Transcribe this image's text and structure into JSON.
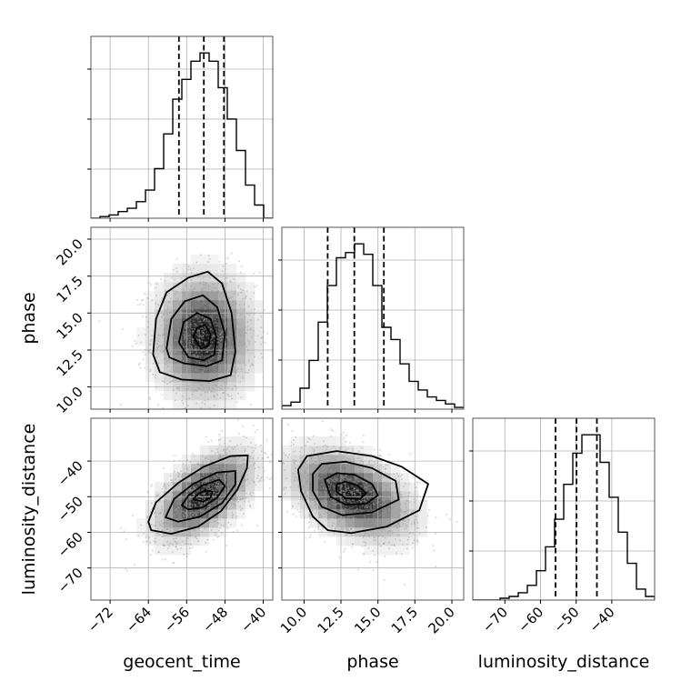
{
  "chart_data": {
    "type": "corner",
    "title": "",
    "parameters": [
      "geocent_time",
      "phase",
      "luminosity_distance"
    ],
    "axis_labels": {
      "x": [
        "geocent_time",
        "phase",
        "luminosity_distance"
      ],
      "y": [
        "phase",
        "luminosity_distance"
      ]
    },
    "grid": true,
    "ranges": {
      "geocent_time": [
        -76,
        -38
      ],
      "phase": [
        8.5,
        20.8
      ],
      "luminosity_distance": [
        -79,
        -28
      ]
    },
    "ticks": {
      "geocent_time": [
        -72,
        -64,
        -56,
        -48,
        -40
      ],
      "phase": [
        10.0,
        12.5,
        15.0,
        17.5,
        20.0
      ],
      "luminosity_distance": [
        -70,
        -60,
        -50,
        -40
      ]
    },
    "tick_labels": {
      "geocent_time": [
        "−72",
        "−64",
        "−56",
        "−48",
        "−40"
      ],
      "phase": [
        "10.0",
        "12.5",
        "15.0",
        "17.5",
        "20.0"
      ],
      "luminosity_distance": [
        "−70",
        "−60",
        "−50",
        "−40"
      ]
    },
    "marginals": {
      "geocent_time": {
        "quantiles": [
          -57.6,
          -52.4,
          -48.2
        ],
        "bins": [
          -76,
          -74.1,
          -72.2,
          -70.3,
          -68.4,
          -66.5,
          -64.6,
          -62.7,
          -60.8,
          -58.9,
          -57,
          -55.1,
          -53.2,
          -51.3,
          -49.4,
          -47.5,
          -45.6,
          -43.7,
          -41.8,
          -39.9,
          -38
        ],
        "counts": [
          0,
          1,
          2,
          4,
          6,
          10,
          17,
          30,
          51,
          72,
          84,
          95,
          100,
          95,
          79,
          60,
          41,
          20,
          8,
          0
        ]
      },
      "phase": {
        "quantiles": [
          11.6,
          13.4,
          15.4
        ],
        "bins": [
          8.5,
          9.115,
          9.73,
          10.345,
          10.96,
          11.575,
          12.19,
          12.805,
          13.42,
          14.035,
          14.65,
          15.265,
          15.88,
          16.495,
          17.11,
          17.725,
          18.34,
          18.955,
          19.57,
          20.185,
          20.8
        ],
        "counts": [
          2,
          4,
          12,
          28,
          50,
          71,
          87,
          90,
          95,
          89,
          71,
          47,
          40,
          26,
          16,
          11,
          7,
          5,
          3,
          1
        ]
      },
      "luminosity_distance": {
        "quantiles": [
          -55.8,
          -49.9,
          -44.2
        ],
        "bins": [
          -79,
          -76.45,
          -73.9,
          -71.35,
          -68.8,
          -66.25,
          -63.7,
          -61.15,
          -58.6,
          -56.05,
          -53.5,
          -50.95,
          -48.4,
          -45.85,
          -43.3,
          -40.75,
          -38.2,
          -35.65,
          -33.1,
          -30.55,
          -28
        ],
        "counts": [
          0,
          0,
          0,
          1,
          2,
          4,
          8,
          16,
          29,
          44,
          63,
          80,
          90,
          90,
          75,
          56,
          37,
          20,
          6,
          2
        ]
      }
    },
    "joint": [
      {
        "x": "geocent_time",
        "y": "phase",
        "center": [
          -52.4,
          13.4
        ],
        "contour_levels": [
          [
            [
              -63.0,
              12.2
            ],
            [
              -62.4,
              14.6
            ],
            [
              -60.2,
              16.4
            ],
            [
              -55.6,
              17.4
            ],
            [
              -51.6,
              17.8
            ],
            [
              -48.6,
              17.0
            ],
            [
              -46.6,
              15.0
            ],
            [
              -45.8,
              12.4
            ],
            [
              -46.8,
              10.8
            ],
            [
              -51.2,
              10.4
            ],
            [
              -57.0,
              10.5
            ],
            [
              -61.6,
              11.0
            ]
          ],
          [
            [
              -60.2,
              12.6
            ],
            [
              -59.2,
              14.6
            ],
            [
              -56.4,
              15.8
            ],
            [
              -52.6,
              16.2
            ],
            [
              -49.6,
              15.4
            ],
            [
              -48.0,
              13.6
            ],
            [
              -48.6,
              11.8
            ],
            [
              -51.8,
              11.4
            ],
            [
              -56.6,
              11.6
            ],
            [
              -59.6,
              12.0
            ]
          ],
          [
            [
              -57.6,
              13.0
            ],
            [
              -56.6,
              14.4
            ],
            [
              -53.8,
              15.0
            ],
            [
              -51.0,
              14.6
            ],
            [
              -49.8,
              13.4
            ],
            [
              -50.2,
              12.2
            ],
            [
              -52.4,
              11.8
            ],
            [
              -55.6,
              12.0
            ]
          ],
          [
            [
              -54.6,
              13.4
            ],
            [
              -53.8,
              14.0
            ],
            [
              -52.2,
              14.2
            ],
            [
              -51.0,
              13.6
            ],
            [
              -51.4,
              12.8
            ],
            [
              -53.0,
              12.6
            ]
          ]
        ]
      },
      {
        "x": "geocent_time",
        "y": "luminosity_distance",
        "center": [
          -52.4,
          -49.6
        ],
        "contour_levels": [
          [
            [
              -64.0,
              -57.0
            ],
            [
              -62.4,
              -51.6
            ],
            [
              -57.6,
              -46.0
            ],
            [
              -52.4,
              -41.6
            ],
            [
              -46.8,
              -38.6
            ],
            [
              -43.2,
              -38.4
            ],
            [
              -43.4,
              -42.0
            ],
            [
              -45.4,
              -48.0
            ],
            [
              -48.8,
              -54.0
            ],
            [
              -53.6,
              -58.4
            ],
            [
              -59.2,
              -60.4
            ],
            [
              -63.4,
              -59.4
            ]
          ],
          [
            [
              -60.4,
              -55.8
            ],
            [
              -58.6,
              -50.6
            ],
            [
              -54.6,
              -46.4
            ],
            [
              -49.6,
              -43.2
            ],
            [
              -45.8,
              -42.8
            ],
            [
              -45.8,
              -46.6
            ],
            [
              -48.6,
              -51.8
            ],
            [
              -53.2,
              -55.6
            ],
            [
              -57.8,
              -57.0
            ]
          ],
          [
            [
              -57.0,
              -52.4
            ],
            [
              -55.6,
              -49.6
            ],
            [
              -52.6,
              -46.8
            ],
            [
              -49.2,
              -45.2
            ],
            [
              -48.0,
              -47.0
            ],
            [
              -49.6,
              -50.2
            ],
            [
              -52.6,
              -53.0
            ],
            [
              -55.6,
              -53.6
            ]
          ],
          [
            [
              -54.6,
              -50.8
            ],
            [
              -53.6,
              -49.2
            ],
            [
              -52.0,
              -48.2
            ],
            [
              -50.6,
              -48.6
            ],
            [
              -51.0,
              -50.2
            ],
            [
              -52.6,
              -51.4
            ]
          ]
        ]
      },
      {
        "x": "phase",
        "y": "luminosity_distance",
        "center": [
          13.2,
          -49.4
        ],
        "contour_levels": [
          [
            [
              9.6,
              -42.4
            ],
            [
              10.2,
              -38.6
            ],
            [
              12.2,
              -37.2
            ],
            [
              14.6,
              -38.6
            ],
            [
              16.6,
              -41.6
            ],
            [
              18.4,
              -46.4
            ],
            [
              17.8,
              -53.8
            ],
            [
              15.6,
              -58.4
            ],
            [
              13.2,
              -60.2
            ],
            [
              11.6,
              -59.4
            ],
            [
              10.6,
              -55.6
            ],
            [
              9.8,
              -48.4
            ]
          ],
          [
            [
              10.6,
              -43.6
            ],
            [
              11.2,
              -40.8
            ],
            [
              12.8,
              -40.2
            ],
            [
              14.6,
              -42.0
            ],
            [
              16.2,
              -45.6
            ],
            [
              16.4,
              -50.8
            ],
            [
              14.6,
              -54.4
            ],
            [
              12.6,
              -55.2
            ],
            [
              11.2,
              -52.8
            ],
            [
              10.6,
              -48.4
            ]
          ],
          [
            [
              11.4,
              -45.2
            ],
            [
              12.2,
              -43.4
            ],
            [
              13.4,
              -43.8
            ],
            [
              14.6,
              -46.4
            ],
            [
              15.0,
              -49.6
            ],
            [
              14.2,
              -52.0
            ],
            [
              12.8,
              -52.2
            ],
            [
              11.8,
              -50.0
            ]
          ],
          [
            [
              12.2,
              -46.6
            ],
            [
              12.8,
              -45.8
            ],
            [
              13.6,
              -46.8
            ],
            [
              14.2,
              -49.0
            ],
            [
              13.8,
              -50.6
            ],
            [
              12.8,
              -50.4
            ],
            [
              12.2,
              -48.6
            ]
          ]
        ]
      }
    ]
  }
}
